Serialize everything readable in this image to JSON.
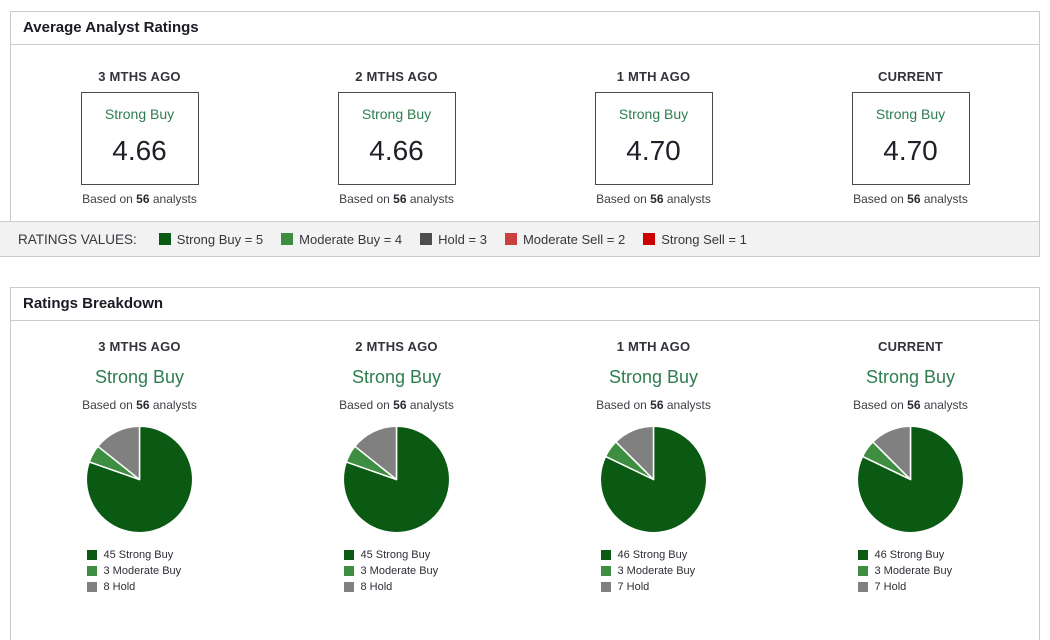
{
  "colors": {
    "strong_buy": "#0a5a14",
    "moderate_buy": "#3e8e42",
    "hold_pie": "#808080",
    "hold_legend": "#4d4d4d",
    "moderate_sell": "#c9403f",
    "strong_sell": "#cc0000",
    "rating_green_text": "#2e7d4f"
  },
  "average_ratings": {
    "title": "Average Analyst Ratings",
    "columns": [
      {
        "period": "3 MTHS AGO",
        "rating": "Strong Buy",
        "value": "4.66",
        "based_prefix": "Based on ",
        "count": "56",
        "based_suffix": " analysts"
      },
      {
        "period": "2 MTHS AGO",
        "rating": "Strong Buy",
        "value": "4.66",
        "based_prefix": "Based on ",
        "count": "56",
        "based_suffix": " analysts"
      },
      {
        "period": "1 MTH AGO",
        "rating": "Strong Buy",
        "value": "4.70",
        "based_prefix": "Based on ",
        "count": "56",
        "based_suffix": " analysts"
      },
      {
        "period": "CURRENT",
        "rating": "Strong Buy",
        "value": "4.70",
        "based_prefix": "Based on ",
        "count": "56",
        "based_suffix": " analysts"
      }
    ]
  },
  "ratings_values_bar": {
    "label": "RATINGS VALUES:",
    "items": [
      {
        "label": "Strong Buy = 5",
        "color": "#0a5a14"
      },
      {
        "label": "Moderate Buy = 4",
        "color": "#3e8e42"
      },
      {
        "label": "Hold = 3",
        "color": "#4d4d4d"
      },
      {
        "label": "Moderate Sell = 2",
        "color": "#c9403f"
      },
      {
        "label": "Strong Sell = 1",
        "color": "#cc0000"
      }
    ]
  },
  "ratings_breakdown": {
    "title": "Ratings Breakdown",
    "columns": [
      {
        "period": "3 MTHS AGO",
        "rating": "Strong Buy",
        "based_prefix": "Based on ",
        "count": "56",
        "based_suffix": " analysts"
      },
      {
        "period": "2 MTHS AGO",
        "rating": "Strong Buy",
        "based_prefix": "Based on ",
        "count": "56",
        "based_suffix": " analysts"
      },
      {
        "period": "1 MTH AGO",
        "rating": "Strong Buy",
        "based_prefix": "Based on ",
        "count": "56",
        "based_suffix": " analysts"
      },
      {
        "period": "CURRENT",
        "rating": "Strong Buy",
        "based_prefix": "Based on ",
        "count": "56",
        "based_suffix": " analysts"
      }
    ]
  },
  "chart_data": [
    {
      "type": "pie",
      "title": "3 MTHS AGO",
      "labels": [
        "Strong Buy",
        "Moderate Buy",
        "Hold"
      ],
      "values": [
        45,
        3,
        8
      ],
      "total": 56,
      "colors": [
        "#0a5a14",
        "#3e8e42",
        "#808080"
      ],
      "legend": [
        "45 Strong Buy",
        "3 Moderate Buy",
        "8 Hold"
      ],
      "legend_position": "bottom",
      "start_angle_deg": -90,
      "direction": "clockwise"
    },
    {
      "type": "pie",
      "title": "2 MTHS AGO",
      "labels": [
        "Strong Buy",
        "Moderate Buy",
        "Hold"
      ],
      "values": [
        45,
        3,
        8
      ],
      "total": 56,
      "colors": [
        "#0a5a14",
        "#3e8e42",
        "#808080"
      ],
      "legend": [
        "45 Strong Buy",
        "3 Moderate Buy",
        "8 Hold"
      ],
      "legend_position": "bottom",
      "start_angle_deg": -90,
      "direction": "clockwise"
    },
    {
      "type": "pie",
      "title": "1 MTH AGO",
      "labels": [
        "Strong Buy",
        "Moderate Buy",
        "Hold"
      ],
      "values": [
        46,
        3,
        7
      ],
      "total": 56,
      "colors": [
        "#0a5a14",
        "#3e8e42",
        "#808080"
      ],
      "legend": [
        "46 Strong Buy",
        "3 Moderate Buy",
        "7 Hold"
      ],
      "legend_position": "bottom",
      "start_angle_deg": -90,
      "direction": "clockwise"
    },
    {
      "type": "pie",
      "title": "CURRENT",
      "labels": [
        "Strong Buy",
        "Moderate Buy",
        "Hold"
      ],
      "values": [
        46,
        3,
        7
      ],
      "total": 56,
      "colors": [
        "#0a5a14",
        "#3e8e42",
        "#808080"
      ],
      "legend": [
        "46 Strong Buy",
        "3 Moderate Buy",
        "7 Hold"
      ],
      "legend_position": "bottom",
      "start_angle_deg": -90,
      "direction": "clockwise"
    }
  ]
}
